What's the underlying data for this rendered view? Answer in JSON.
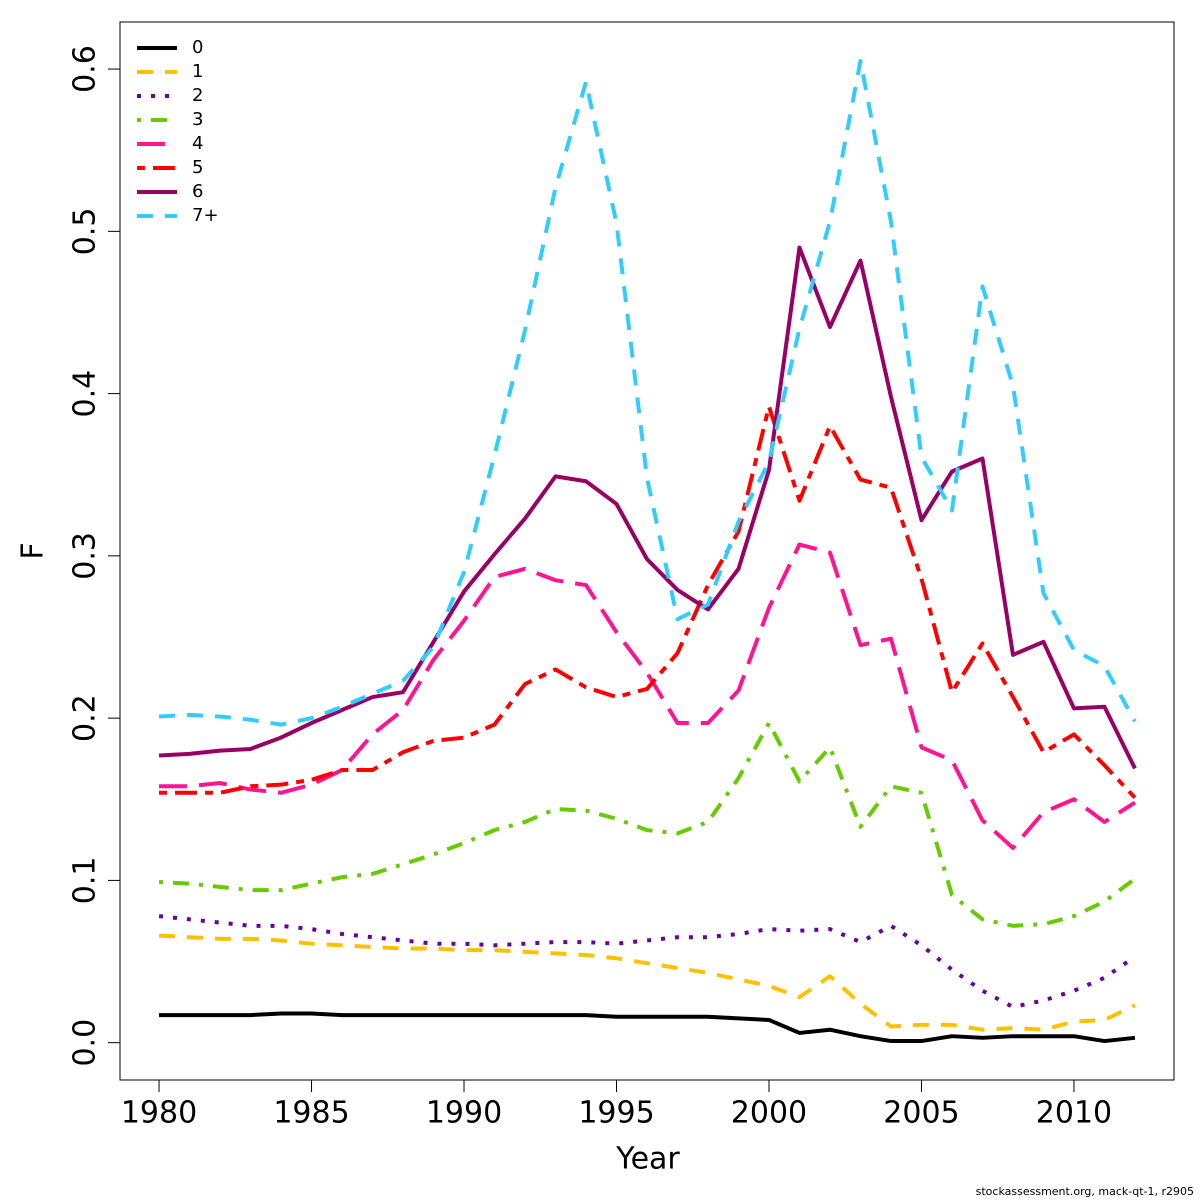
{
  "chart_data": {
    "type": "line",
    "x_label": "Year",
    "y_label": "F",
    "caption": "stockassessment.org, mack-qt-1, r2905",
    "x": [
      1980,
      1981,
      1982,
      1983,
      1984,
      1985,
      1986,
      1987,
      1988,
      1989,
      1990,
      1991,
      1992,
      1993,
      1994,
      1995,
      1996,
      1997,
      1998,
      1999,
      2000,
      2001,
      2002,
      2003,
      2004,
      2005,
      2006,
      2007,
      2008,
      2009,
      2010,
      2011,
      2012
    ],
    "xlim": [
      1978.72,
      2013.28
    ],
    "xticks": [
      1980,
      1985,
      1990,
      1995,
      2000,
      2005,
      2010
    ],
    "ylim": [
      -0.023,
      0.629
    ],
    "yticks": [
      {
        "value": 0,
        "label": "0.0"
      },
      0.1,
      0.2,
      0.3,
      0.4,
      0.5,
      0.6
    ],
    "legend": "top-left",
    "series": [
      {
        "name": "0",
        "color": "#000000",
        "style": "solid",
        "values": [
          0.017,
          0.017,
          0.017,
          0.017,
          0.018,
          0.018,
          0.017,
          0.017,
          0.017,
          0.017,
          0.017,
          0.017,
          0.017,
          0.017,
          0.017,
          0.016,
          0.016,
          0.016,
          0.016,
          0.015,
          0.014,
          0.006,
          0.008,
          0.004,
          0.001,
          0.001,
          0.004,
          0.003,
          0.004,
          0.004,
          0.004,
          0.001,
          0.003
        ]
      },
      {
        "name": "1",
        "color": "#ffc000",
        "style": "dashed",
        "values": [
          0.066,
          0.065,
          0.064,
          0.064,
          0.063,
          0.061,
          0.06,
          0.059,
          0.058,
          0.058,
          0.057,
          0.057,
          0.056,
          0.055,
          0.054,
          0.052,
          0.049,
          0.046,
          0.043,
          0.039,
          0.035,
          0.028,
          0.041,
          0.024,
          0.01,
          0.011,
          0.011,
          0.008,
          0.009,
          0.008,
          0.013,
          0.014,
          0.023
        ]
      },
      {
        "name": "2",
        "color": "#6a00a0",
        "style": "dotted",
        "values": [
          0.078,
          0.076,
          0.074,
          0.072,
          0.072,
          0.07,
          0.067,
          0.065,
          0.063,
          0.061,
          0.061,
          0.06,
          0.061,
          0.062,
          0.062,
          0.061,
          0.063,
          0.065,
          0.065,
          0.067,
          0.07,
          0.069,
          0.07,
          0.062,
          0.072,
          0.06,
          0.045,
          0.032,
          0.022,
          0.026,
          0.032,
          0.04,
          0.053
        ]
      },
      {
        "name": "3",
        "color": "#66cc00",
        "style": "dotdash",
        "values": [
          0.099,
          0.098,
          0.096,
          0.094,
          0.094,
          0.098,
          0.102,
          0.104,
          0.11,
          0.116,
          0.123,
          0.131,
          0.136,
          0.144,
          0.143,
          0.138,
          0.131,
          0.129,
          0.136,
          0.163,
          0.197,
          0.161,
          0.182,
          0.133,
          0.158,
          0.154,
          0.091,
          0.076,
          0.072,
          0.073,
          0.078,
          0.087,
          0.101
        ]
      },
      {
        "name": "4",
        "color": "#ff1493",
        "style": "longdash",
        "values": [
          0.158,
          0.158,
          0.16,
          0.156,
          0.154,
          0.159,
          0.168,
          0.19,
          0.205,
          0.236,
          0.26,
          0.287,
          0.292,
          0.285,
          0.282,
          0.253,
          0.228,
          0.197,
          0.197,
          0.217,
          0.268,
          0.307,
          0.302,
          0.245,
          0.249,
          0.182,
          0.174,
          0.137,
          0.12,
          0.142,
          0.15,
          0.136,
          0.148
        ]
      },
      {
        "name": "5",
        "color": "#ff0000",
        "style": "twodash",
        "values": [
          0.154,
          0.154,
          0.154,
          0.158,
          0.159,
          0.162,
          0.168,
          0.168,
          0.179,
          0.186,
          0.188,
          0.196,
          0.221,
          0.23,
          0.219,
          0.213,
          0.218,
          0.24,
          0.282,
          0.315,
          0.392,
          0.334,
          0.38,
          0.347,
          0.342,
          0.286,
          0.216,
          0.246,
          0.213,
          0.179,
          0.19,
          0.171,
          0.151
        ]
      },
      {
        "name": "6",
        "color": "#990066",
        "style": "solid",
        "values": [
          0.177,
          0.178,
          0.18,
          0.181,
          0.188,
          0.197,
          0.205,
          0.213,
          0.216,
          0.247,
          0.278,
          0.301,
          0.323,
          0.349,
          0.346,
          0.332,
          0.298,
          0.279,
          0.267,
          0.292,
          0.353,
          0.49,
          0.441,
          0.482,
          0.398,
          0.322,
          0.352,
          0.36,
          0.239,
          0.247,
          0.206,
          0.207,
          0.169
        ]
      },
      {
        "name": "7+",
        "color": "#33ccff",
        "style": "dashed",
        "values": [
          0.201,
          0.202,
          0.201,
          0.199,
          0.196,
          0.2,
          0.207,
          0.215,
          0.223,
          0.244,
          0.29,
          0.362,
          0.439,
          0.527,
          0.592,
          0.505,
          0.348,
          0.261,
          0.27,
          0.321,
          0.358,
          0.44,
          0.506,
          0.605,
          0.506,
          0.361,
          0.328,
          0.466,
          0.405,
          0.277,
          0.242,
          0.232,
          0.198
        ]
      }
    ]
  }
}
